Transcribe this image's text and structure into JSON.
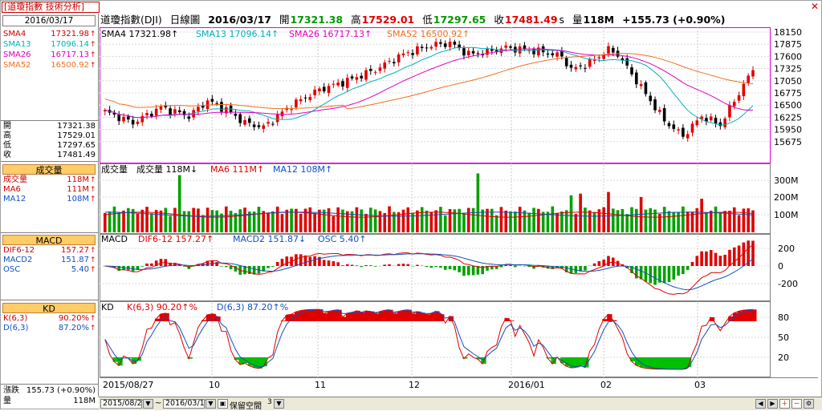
{
  "window": {
    "title": "[道瓊指數 技術分析]",
    "close_symbol": "✕"
  },
  "left_panel": {
    "date": "2016/03/17",
    "sma_rows": [
      {
        "key": "SMA4",
        "value": "17321.98",
        "color": "#cc0000"
      },
      {
        "key": "SMA13",
        "value": "17096.14",
        "color": "#00b0c0"
      },
      {
        "key": "SMA26",
        "value": "16717.13",
        "color": "#e000c0"
      },
      {
        "key": "SMA52",
        "value": "16500.92",
        "color": "#f07020"
      }
    ],
    "ohlc_rows": [
      {
        "key": "開",
        "value": "17321.38"
      },
      {
        "key": "高",
        "value": "17529.01"
      },
      {
        "key": "低",
        "value": "17297.65"
      },
      {
        "key": "收",
        "value": "17481.49"
      }
    ],
    "volume_header": "成交量",
    "volume_rows": [
      {
        "key": "成交量",
        "value": "118M",
        "color": "#cc0000"
      },
      {
        "key": "MA6",
        "value": "111M",
        "color": "#cc0000"
      },
      {
        "key": "MA12",
        "value": "108M",
        "color": "#1050c0"
      }
    ],
    "macd_header": "MACD",
    "macd_rows": [
      {
        "key": "DIF6-12",
        "value": "157.27",
        "color": "#cc0000"
      },
      {
        "key": "MACD2",
        "value": "151.87",
        "color": "#1050c0"
      },
      {
        "key": "OSC",
        "value": "5.40",
        "color": "#1050c0"
      }
    ],
    "kd_header": "KD",
    "kd_rows": [
      {
        "key": "K(6,3)",
        "value": "90.20%",
        "color": "#cc0000"
      },
      {
        "key": "D(6,3)",
        "value": "87.20%",
        "color": "#1050c0"
      }
    ],
    "bottom_rows": [
      {
        "key": "漲跌",
        "value": "155.73 (+0.90%)"
      },
      {
        "key": "量",
        "value": "118M"
      }
    ]
  },
  "header": {
    "name": "道瓊指數(DJI)",
    "period": "日線圖",
    "date": "2016/03/17",
    "open_label": "開",
    "open": "17321.38",
    "high_label": "高",
    "high": "17529.01",
    "low_label": "低",
    "low": "17297.65",
    "close_label": "收",
    "close": "17481.49",
    "close_suffix": "s",
    "vol_label": "量",
    "vol": "118M",
    "change": "+155.73 (+0.90%)"
  },
  "price_legend": [
    {
      "text": "SMA4 17321.98↑",
      "color": "#000000"
    },
    {
      "text": "SMA13 17096.14↑",
      "color": "#00b0c0"
    },
    {
      "text": "SMA26 16717.13↑",
      "color": "#e000c0"
    },
    {
      "text": "SMA52 16500.92↑",
      "color": "#f07020"
    }
  ],
  "volume_legend": [
    {
      "text": "成交量",
      "color": "#000000"
    },
    {
      "text": "成交量 118M↓",
      "color": "#000000"
    },
    {
      "text": "MA6 111M↑",
      "color": "#e00000"
    },
    {
      "text": "MA12 108M↑",
      "color": "#1050c0"
    }
  ],
  "macd_legend": [
    {
      "text": "MACD",
      "color": "#000000"
    },
    {
      "text": "DIF6-12 157.27↑",
      "color": "#e00000"
    },
    {
      "text": "MACD2 151.87↓",
      "color": "#1050c0"
    },
    {
      "text": "OSC 5.40↑",
      "color": "#1050c0"
    }
  ],
  "kd_legend": [
    {
      "text": "KD",
      "color": "#000000"
    },
    {
      "text": "K(6,3) 90.20↑%",
      "color": "#e00000"
    },
    {
      "text": "D(6,3) 87.20↑%",
      "color": "#1050c0"
    }
  ],
  "axes": {
    "price_ticks": [
      "18150",
      "17875",
      "17600",
      "17325",
      "17050",
      "16775",
      "16500",
      "16225",
      "15950",
      "15675"
    ],
    "volume_ticks": [
      "300M",
      "200M",
      "100M"
    ],
    "macd_ticks": [
      "200",
      "0",
      "-200"
    ],
    "kd_ticks": [
      "80",
      "50",
      "20"
    ],
    "x_labels": [
      "2015/08/27",
      "10",
      "11",
      "12",
      "2016/01",
      "02",
      "03"
    ]
  },
  "bottom_bar": {
    "start_date": "2015/08/27",
    "range_sep": "~",
    "end_date": "2016/03/17",
    "keep_space_label": "保留空間",
    "keep_space_value": "3"
  },
  "colors": {
    "up": "#e00000",
    "down": "#000000",
    "vol_up": "#e00000",
    "vol_down": "#00a000",
    "grid": "#c0c0c0",
    "panel_border": "#e000e0",
    "section_header": "#ffcc66"
  }
}
